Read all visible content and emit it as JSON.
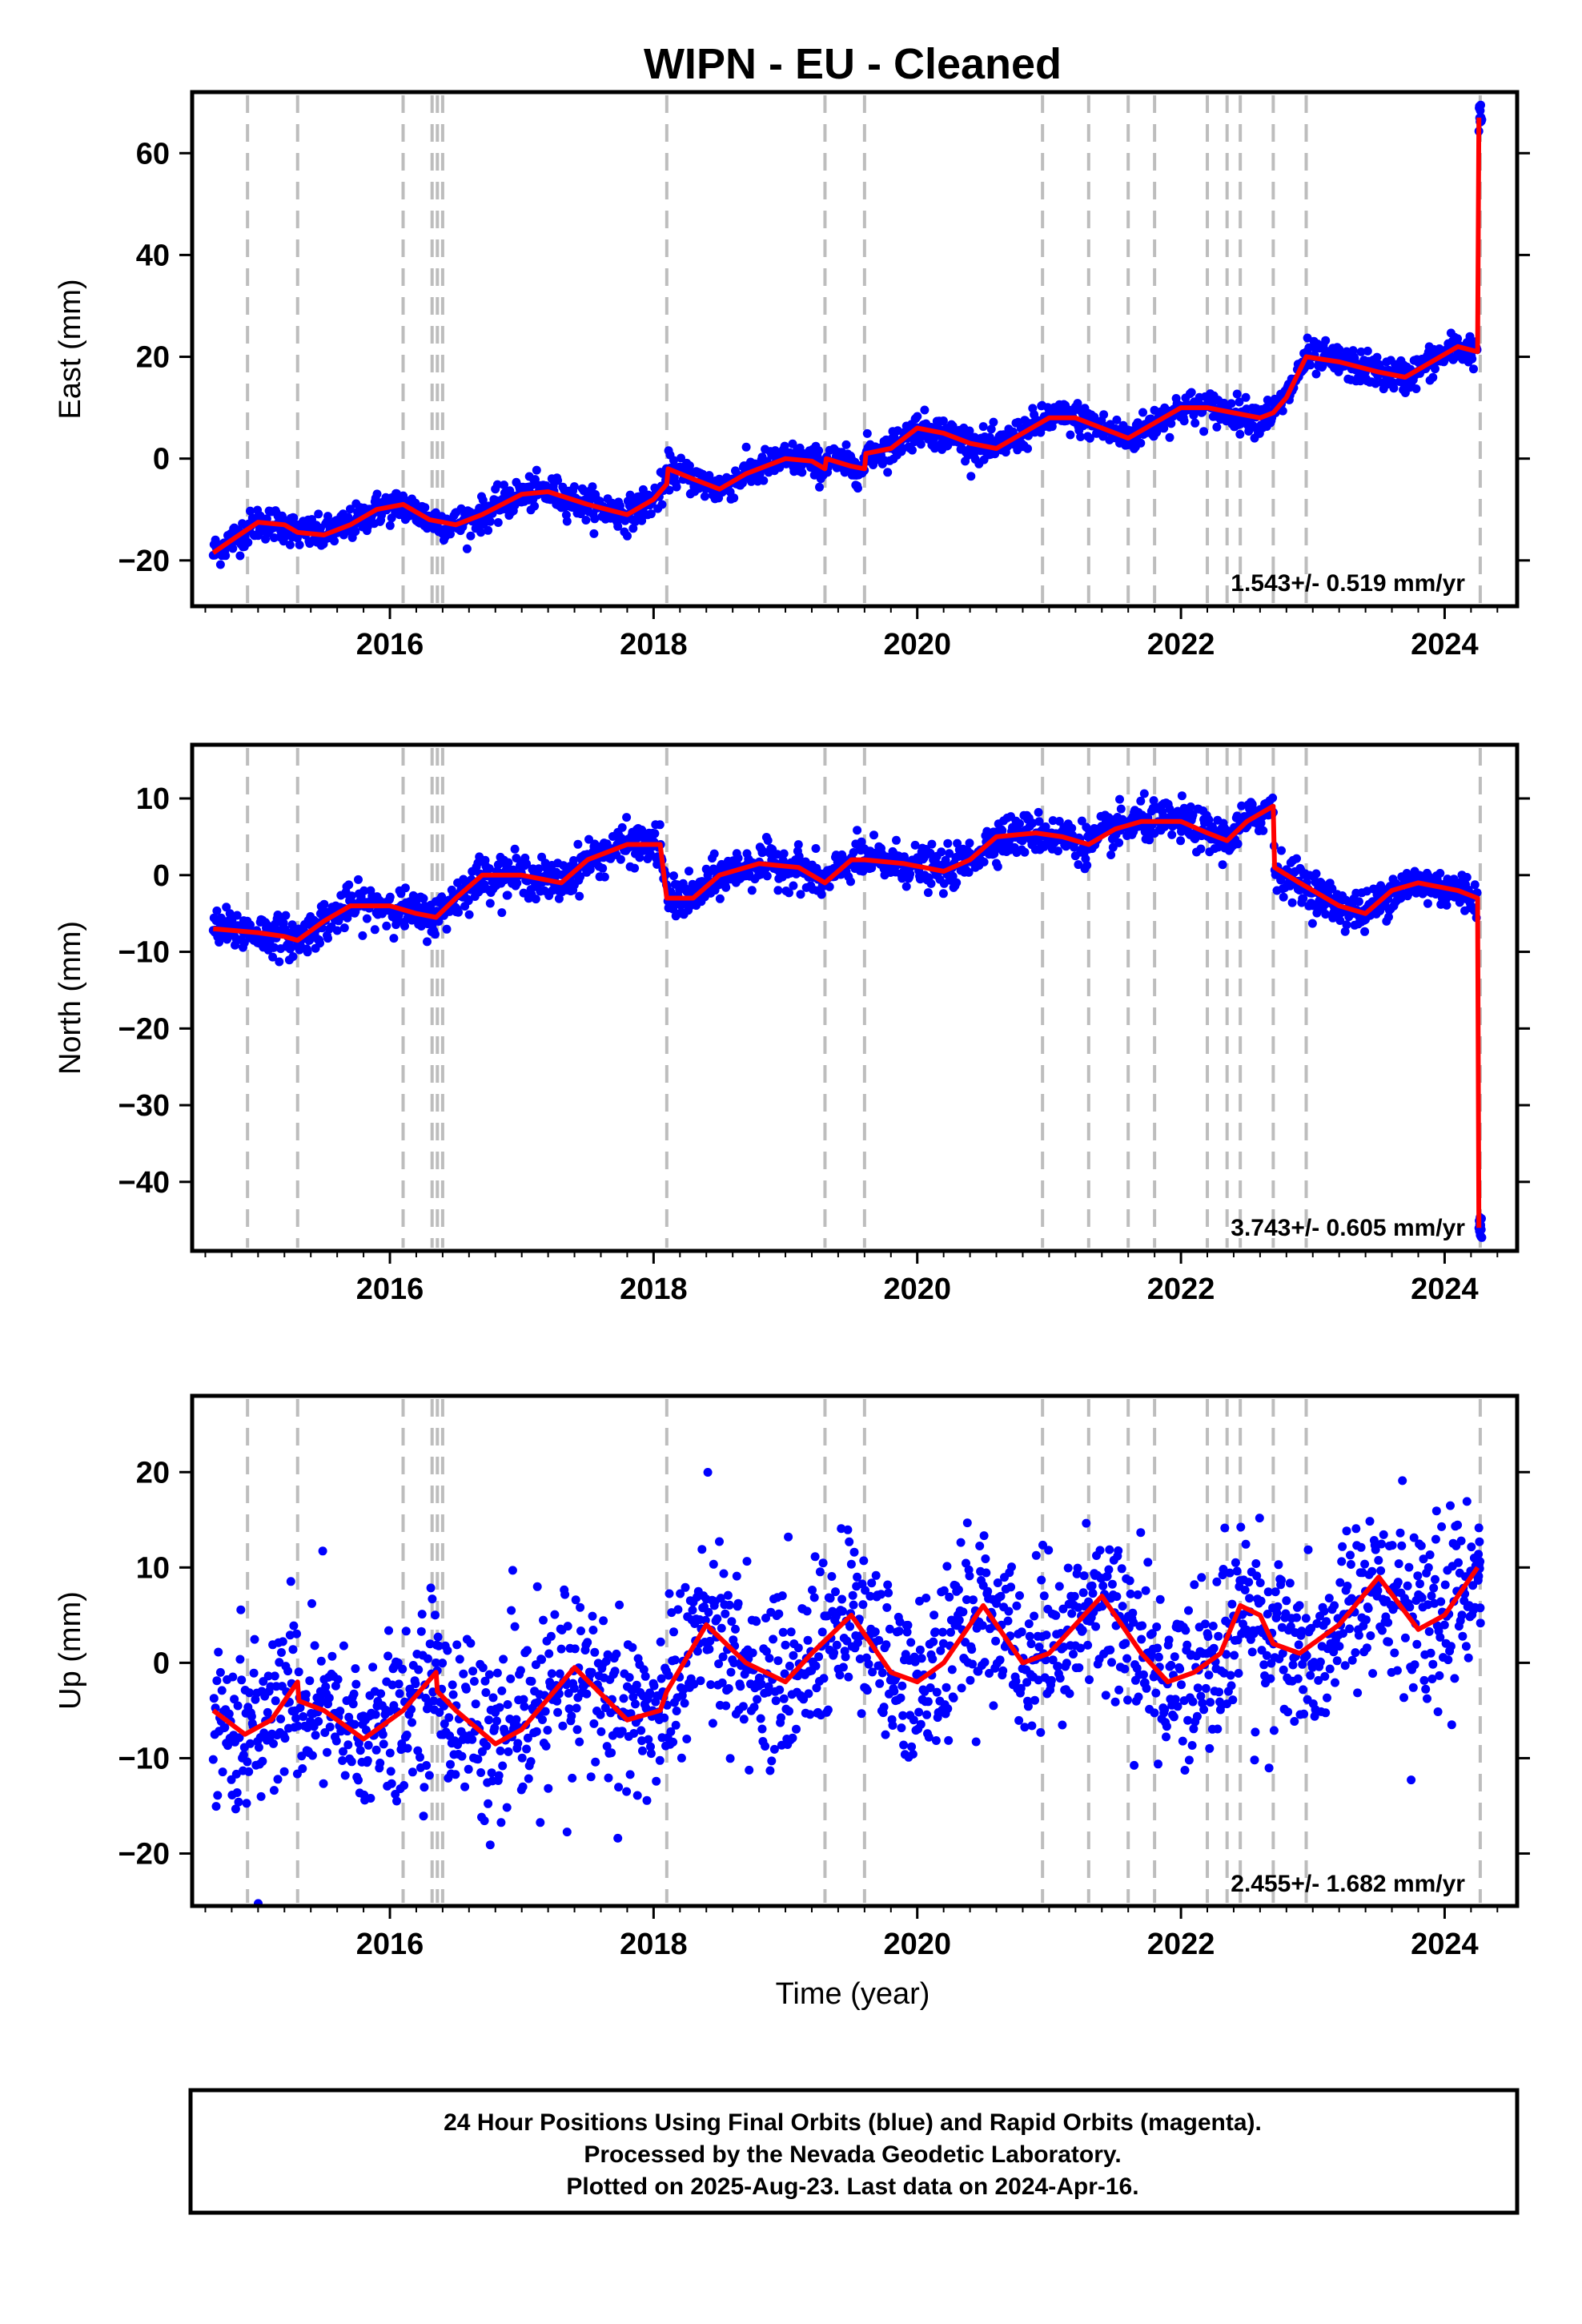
{
  "title": "WIPN  - EU - Cleaned",
  "colors": {
    "points": "#0000ff",
    "model": "#ff0000",
    "offsets": "#bdbdbd",
    "axes": "#000000"
  },
  "chart_data": [
    {
      "type": "scatter",
      "component": "east",
      "ylabel": "East (mm)",
      "xlabel": "",
      "xlim": [
        2014.5,
        2024.55
      ],
      "ylim": [
        -29,
        72
      ],
      "xticks": [
        2016,
        2018,
        2020,
        2022,
        2024
      ],
      "yticks": [
        -20,
        0,
        20,
        40,
        60
      ],
      "grid": false,
      "rate_label": "1.543+/- 0.519 mm/yr",
      "model": [
        [
          2014.66,
          -18.5
        ],
        [
          2014.8,
          -16
        ],
        [
          2015.0,
          -12.5
        ],
        [
          2015.2,
          -13
        ],
        [
          2015.3,
          -14.5
        ],
        [
          2015.5,
          -15
        ],
        [
          2015.7,
          -13
        ],
        [
          2015.9,
          -10
        ],
        [
          2016.1,
          -9
        ],
        [
          2016.3,
          -12
        ],
        [
          2016.5,
          -13
        ],
        [
          2016.7,
          -11
        ],
        [
          2017.0,
          -7
        ],
        [
          2017.2,
          -6.5
        ],
        [
          2017.5,
          -9
        ],
        [
          2017.8,
          -11
        ],
        [
          2018.0,
          -8
        ],
        [
          2018.1,
          -5
        ],
        [
          2018.11,
          -2
        ],
        [
          2018.3,
          -4
        ],
        [
          2018.5,
          -6
        ],
        [
          2018.7,
          -3
        ],
        [
          2019.0,
          0
        ],
        [
          2019.2,
          -0.5
        ],
        [
          2019.3,
          -2
        ],
        [
          2019.31,
          0
        ],
        [
          2019.5,
          -1.5
        ],
        [
          2019.6,
          -2
        ],
        [
          2019.61,
          1
        ],
        [
          2019.8,
          2
        ],
        [
          2020.0,
          6
        ],
        [
          2020.2,
          5
        ],
        [
          2020.4,
          3
        ],
        [
          2020.6,
          2
        ],
        [
          2020.8,
          5
        ],
        [
          2021.0,
          8
        ],
        [
          2021.2,
          8
        ],
        [
          2021.4,
          6
        ],
        [
          2021.6,
          4
        ],
        [
          2021.8,
          7
        ],
        [
          2022.0,
          10
        ],
        [
          2022.2,
          10
        ],
        [
          2022.4,
          9
        ],
        [
          2022.6,
          8
        ],
        [
          2022.7,
          9
        ],
        [
          2022.8,
          12
        ],
        [
          2022.95,
          20
        ],
        [
          2023.2,
          19
        ],
        [
          2023.5,
          17
        ],
        [
          2023.7,
          16
        ],
        [
          2023.9,
          19
        ],
        [
          2024.1,
          22
        ],
        [
          2024.25,
          21
        ],
        [
          2024.26,
          67
        ]
      ],
      "series": [
        {
          "name": "",
          "color": "#0000ff"
        }
      ]
    },
    {
      "type": "scatter",
      "component": "north",
      "ylabel": "North (mm)",
      "xlabel": "",
      "xlim": [
        2014.5,
        2024.55
      ],
      "ylim": [
        -49,
        17
      ],
      "xticks": [
        2016,
        2018,
        2020,
        2022,
        2024
      ],
      "yticks": [
        -40,
        -30,
        -20,
        -10,
        0,
        10
      ],
      "grid": false,
      "rate_label": "3.743+/- 0.605 mm/yr",
      "model": [
        [
          2014.66,
          -7
        ],
        [
          2015.0,
          -7.5
        ],
        [
          2015.2,
          -8
        ],
        [
          2015.3,
          -8.5
        ],
        [
          2015.5,
          -6
        ],
        [
          2015.7,
          -4
        ],
        [
          2016.0,
          -4
        ],
        [
          2016.2,
          -5
        ],
        [
          2016.35,
          -5.5
        ],
        [
          2016.5,
          -3
        ],
        [
          2016.7,
          0
        ],
        [
          2017.0,
          0
        ],
        [
          2017.3,
          -1
        ],
        [
          2017.5,
          2
        ],
        [
          2017.8,
          4
        ],
        [
          2018.05,
          4
        ],
        [
          2018.1,
          -3
        ],
        [
          2018.3,
          -3
        ],
        [
          2018.5,
          0
        ],
        [
          2018.8,
          1.5
        ],
        [
          2019.1,
          1
        ],
        [
          2019.3,
          -1
        ],
        [
          2019.5,
          2
        ],
        [
          2019.6,
          2
        ],
        [
          2019.9,
          1.5
        ],
        [
          2020.2,
          0.5
        ],
        [
          2020.4,
          2
        ],
        [
          2020.6,
          5
        ],
        [
          2020.9,
          5.5
        ],
        [
          2021.1,
          5
        ],
        [
          2021.3,
          4
        ],
        [
          2021.5,
          6
        ],
        [
          2021.7,
          7
        ],
        [
          2022.0,
          7
        ],
        [
          2022.2,
          5.5
        ],
        [
          2022.35,
          4.5
        ],
        [
          2022.5,
          7
        ],
        [
          2022.7,
          9
        ],
        [
          2022.71,
          1
        ],
        [
          2022.9,
          -1
        ],
        [
          2023.2,
          -4
        ],
        [
          2023.4,
          -5
        ],
        [
          2023.6,
          -2
        ],
        [
          2023.8,
          -1
        ],
        [
          2024.1,
          -2
        ],
        [
          2024.25,
          -3
        ],
        [
          2024.26,
          -46
        ]
      ],
      "series": [
        {
          "name": "",
          "color": "#0000ff"
        }
      ]
    },
    {
      "type": "scatter",
      "component": "up",
      "ylabel": "Up (mm)",
      "xlabel": "Time (year)",
      "xlim": [
        2014.5,
        2024.55
      ],
      "ylim": [
        -25.5,
        28
      ],
      "xticks": [
        2016,
        2018,
        2020,
        2022,
        2024
      ],
      "yticks": [
        -20,
        -10,
        0,
        10,
        20
      ],
      "grid": false,
      "rate_label": "2.455+/- 1.682 mm/yr",
      "model": [
        [
          2014.66,
          -5
        ],
        [
          2014.9,
          -7.5
        ],
        [
          2015.1,
          -6
        ],
        [
          2015.3,
          -2
        ],
        [
          2015.31,
          -4
        ],
        [
          2015.5,
          -5
        ],
        [
          2015.8,
          -8
        ],
        [
          2016.1,
          -5
        ],
        [
          2016.35,
          -1
        ],
        [
          2016.36,
          -3
        ],
        [
          2016.5,
          -5
        ],
        [
          2016.8,
          -8.5
        ],
        [
          2017.0,
          -7
        ],
        [
          2017.4,
          -0.5
        ],
        [
          2017.8,
          -6
        ],
        [
          2018.05,
          -5
        ],
        [
          2018.1,
          -3
        ],
        [
          2018.4,
          4
        ],
        [
          2018.7,
          0
        ],
        [
          2019.0,
          -2
        ],
        [
          2019.2,
          1
        ],
        [
          2019.5,
          5
        ],
        [
          2019.8,
          -1
        ],
        [
          2020.0,
          -2
        ],
        [
          2020.2,
          0
        ],
        [
          2020.5,
          6
        ],
        [
          2020.8,
          0
        ],
        [
          2021.0,
          1
        ],
        [
          2021.4,
          7
        ],
        [
          2021.7,
          1
        ],
        [
          2021.9,
          -2
        ],
        [
          2022.1,
          -1
        ],
        [
          2022.3,
          1
        ],
        [
          2022.45,
          6
        ],
        [
          2022.6,
          5
        ],
        [
          2022.7,
          2
        ],
        [
          2022.9,
          1
        ],
        [
          2023.2,
          4
        ],
        [
          2023.5,
          9
        ],
        [
          2023.8,
          3.5
        ],
        [
          2024.0,
          5
        ],
        [
          2024.25,
          10
        ]
      ],
      "series": [
        {
          "name": "",
          "color": "#0000ff"
        }
      ]
    }
  ],
  "offset_lines": [
    2014.92,
    2015.3,
    2016.1,
    2016.32,
    2016.36,
    2016.4,
    2018.1,
    2019.3,
    2019.6,
    2020.95,
    2021.3,
    2021.6,
    2021.8,
    2022.2,
    2022.35,
    2022.45,
    2022.7,
    2022.95,
    2024.27
  ],
  "footer": {
    "line1": "24 Hour Positions Using Final Orbits (blue) and Rapid Orbits (magenta).",
    "line2": "Processed by the Nevada Geodetic Laboratory.",
    "line3": "Plotted on 2025-Aug-23. Last data on 2024-Apr-16."
  }
}
